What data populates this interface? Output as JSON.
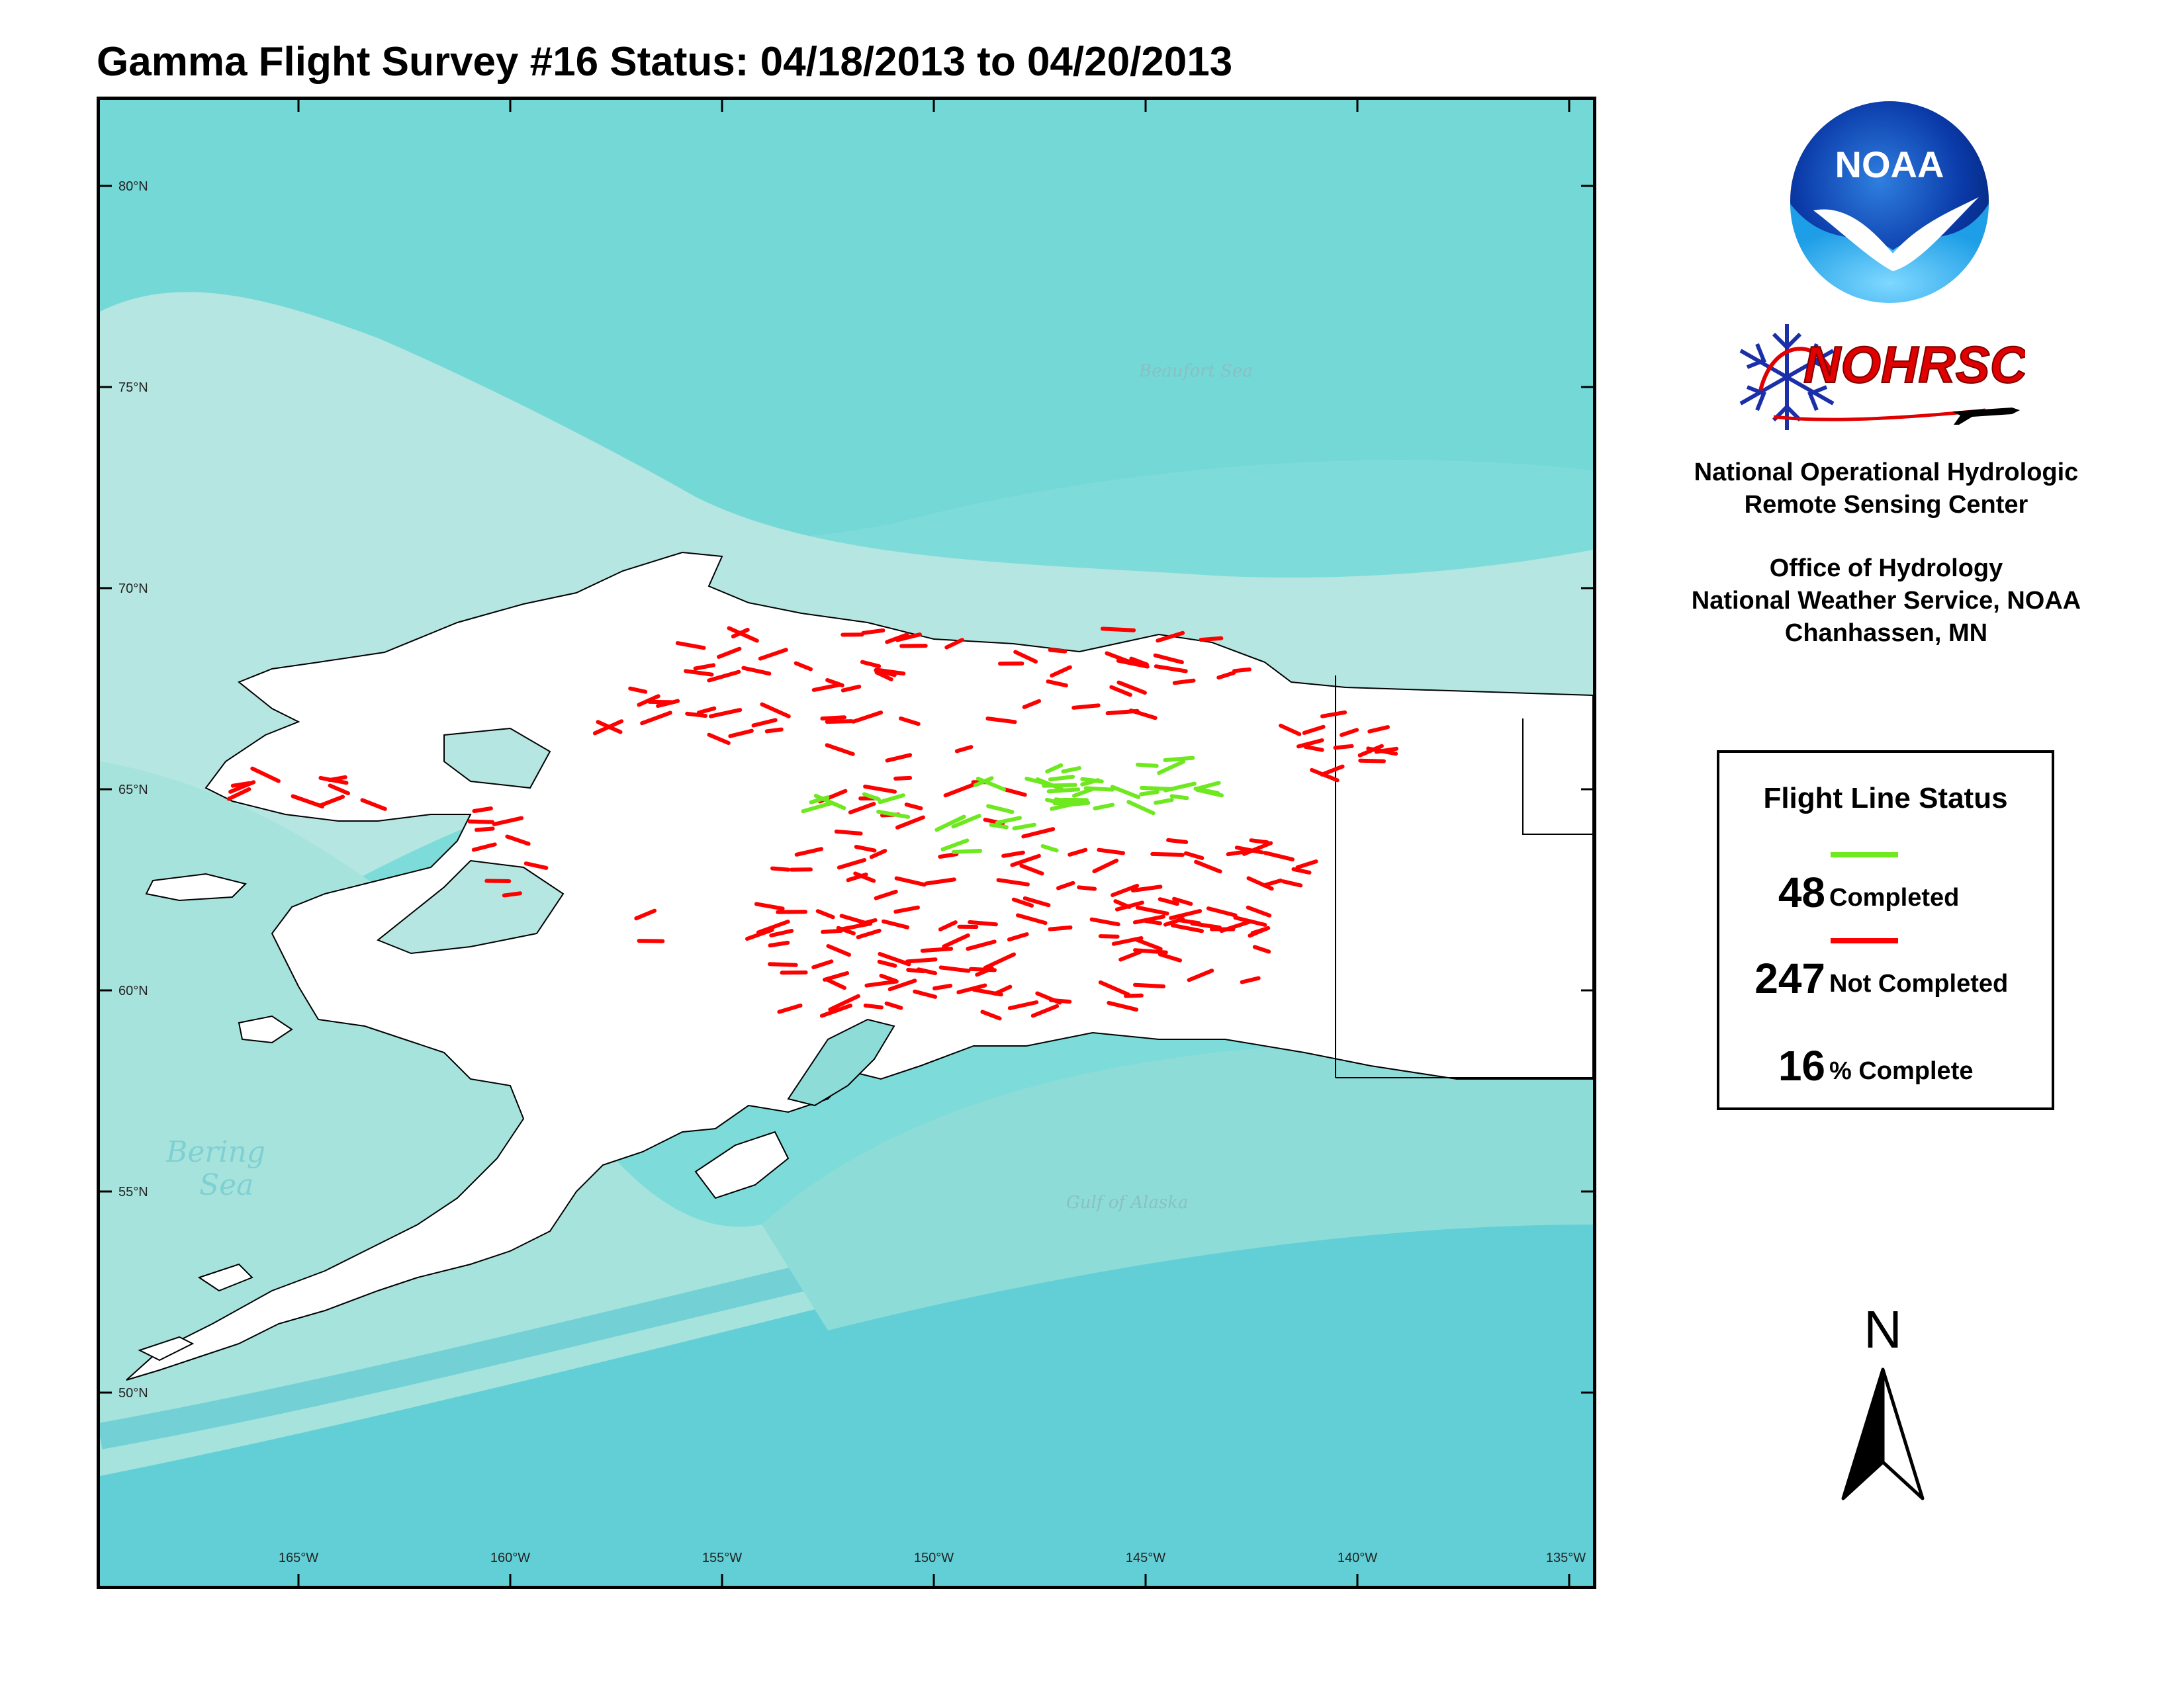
{
  "title": "Gamma Flight Survey #16 Status: 04/18/2013 to 04/20/2013",
  "map": {
    "latitude_labels": [
      "80°N",
      "75°N",
      "70°N",
      "65°N",
      "60°N",
      "55°N",
      "50°N"
    ],
    "longitude_labels": [
      "165°W",
      "160°W",
      "155°W",
      "150°W",
      "145°W",
      "140°W",
      "135°W"
    ],
    "sea_labels": {
      "bering_line1": "Bering",
      "bering_line2": "Sea",
      "beaufort": "Beaufort Sea",
      "gulf": "Gulf of Alaska"
    },
    "colors": {
      "ocean_deep": "#5fd3d6",
      "ocean_shelf": "#b8e6e2",
      "land": "#ffffff",
      "completed": "#6ee81f",
      "not_completed": "#ff0000"
    }
  },
  "logos": {
    "noaa_text": "NOAA",
    "nohrsc_text": "NOHRSC"
  },
  "organization": {
    "line1": "National Operational Hydrologic",
    "line2": "Remote Sensing Center",
    "line3": "Office of Hydrology",
    "line4": "National Weather Service, NOAA",
    "line5": "Chanhassen, MN"
  },
  "legend": {
    "title": "Flight Line Status",
    "completed_count": "48",
    "completed_label": "Completed",
    "not_completed_count": "247",
    "not_completed_label": "Not Completed",
    "percent_value": "16",
    "percent_label": "% Complete"
  },
  "north_arrow": {
    "letter": "N"
  }
}
